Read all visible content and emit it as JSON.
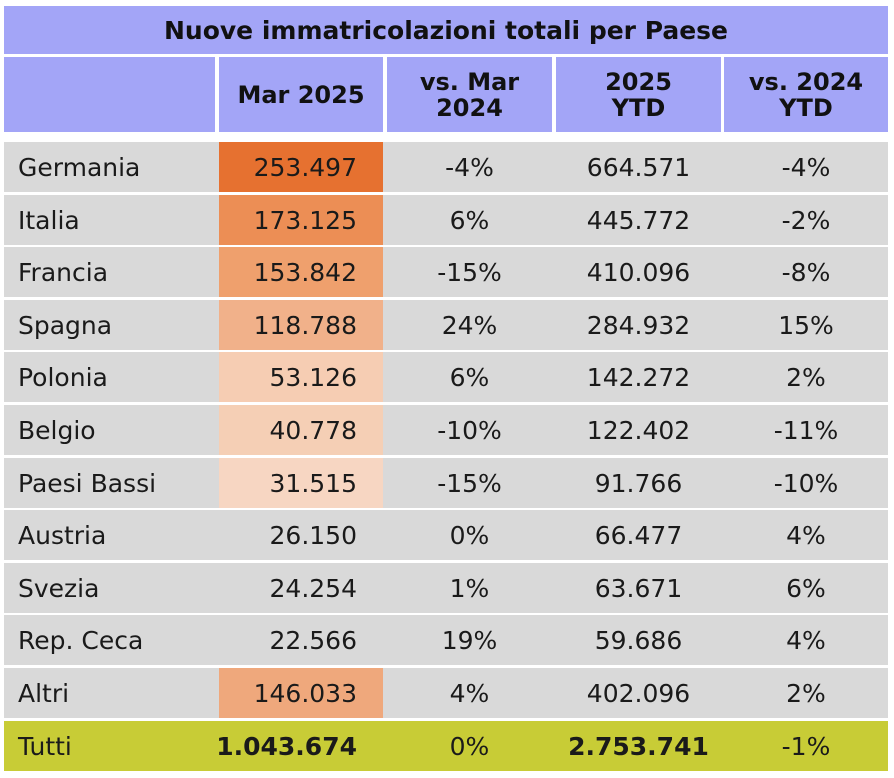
{
  "title": "Nuove immatricolazioni totali per Paese",
  "headers": [
    "",
    "Mar 2025",
    "vs. Mar\n2024",
    "2025\nYTD",
    "vs. 2024\nYTD"
  ],
  "rows": [
    {
      "country": "Germania",
      "mar2025": "253.497",
      "vs_mar2024": "-4%",
      "ytd2025": "664.571",
      "vs_ytd2024": "-4%",
      "heat_color": "#e67130"
    },
    {
      "country": "Italia",
      "mar2025": "173.125",
      "vs_mar2024": "6%",
      "ytd2025": "445.772",
      "vs_ytd2024": "-2%",
      "heat_color": "#ec8e55"
    },
    {
      "country": "Francia",
      "mar2025": "153.842",
      "vs_mar2024": "-15%",
      "ytd2025": "410.096",
      "vs_ytd2024": "-8%",
      "heat_color": "#efa06d"
    },
    {
      "country": "Spagna",
      "mar2025": "118.788",
      "vs_mar2024": "24%",
      "ytd2025": "284.932",
      "vs_ytd2024": "15%",
      "heat_color": "#f1b18a"
    },
    {
      "country": "Polonia",
      "mar2025": "53.126",
      "vs_mar2024": "6%",
      "ytd2025": "142.272",
      "vs_ytd2024": "2%",
      "heat_color": "#f6cdb3"
    },
    {
      "country": "Belgio",
      "mar2025": "40.778",
      "vs_mar2024": "-10%",
      "ytd2025": "122.402",
      "vs_ytd2024": "-11%",
      "heat_color": "#f5cfb5"
    },
    {
      "country": "Paesi Bassi",
      "mar2025": "31.515",
      "vs_mar2024": "-15%",
      "ytd2025": "91.766",
      "vs_ytd2024": "-10%",
      "heat_color": "#f7d6c2"
    },
    {
      "country": "Austria",
      "mar2025": "26.150",
      "vs_mar2024": "0%",
      "ytd2025": "66.477",
      "vs_ytd2024": "4%",
      "heat_color": ""
    },
    {
      "country": "Svezia",
      "mar2025": "24.254",
      "vs_mar2024": "1%",
      "ytd2025": "63.671",
      "vs_ytd2024": "6%",
      "heat_color": ""
    },
    {
      "country": "Rep. Ceca",
      "mar2025": "22.566",
      "vs_mar2024": "19%",
      "ytd2025": "59.686",
      "vs_ytd2024": "4%",
      "heat_color": ""
    },
    {
      "country": "Altri",
      "mar2025": "146.033",
      "vs_mar2024": "4%",
      "ytd2025": "402.096",
      "vs_ytd2024": "2%",
      "heat_color": "#efa87c"
    }
  ],
  "total": {
    "country": "Tutti",
    "mar2025": "1.043.674",
    "vs_mar2024": "0%",
    "ytd2025": "2.753.741",
    "vs_ytd2024": "-1%"
  },
  "colors": {
    "header": "#a3a5f7",
    "row_bg": "#d9d9d9",
    "total_bg": "#c8cc36"
  }
}
